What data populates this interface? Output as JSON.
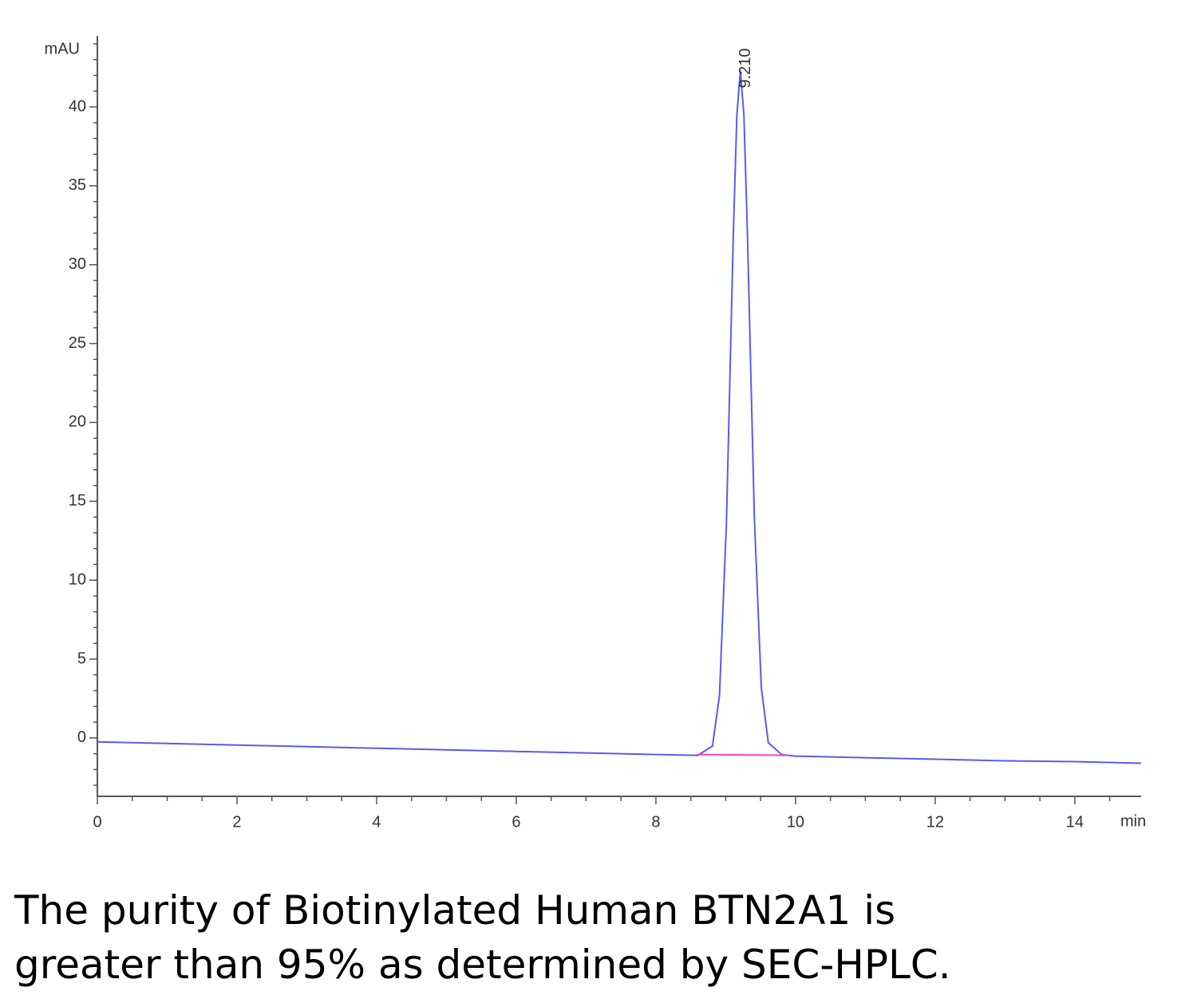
{
  "chart_data": {
    "type": "line",
    "y_label": "mAU",
    "x_label": "min",
    "annotation": "9.210",
    "caption": [
      "The purity of Biotinylated Human BTN2A1 is",
      "greater than 95% as determined by SEC-HPLC."
    ],
    "xlim": [
      0,
      14.95
    ],
    "ylim": [
      -3.7,
      44.3
    ],
    "xticks": [
      0,
      2,
      4,
      6,
      8,
      10,
      12,
      14
    ],
    "xminorticks": [
      0.5,
      1,
      1.5,
      2.5,
      3,
      3.5,
      4.5,
      5,
      5.5,
      6.5,
      7,
      7.5,
      8.5,
      9,
      9.5,
      10.5,
      11,
      11.5,
      12.5,
      13,
      13.5,
      14.5
    ],
    "yticks": [
      0,
      5,
      10,
      15,
      20,
      25,
      30,
      35,
      40
    ],
    "yminorticks": [
      -3,
      -2,
      -1,
      1,
      2,
      3,
      4,
      6,
      7,
      8,
      9,
      11,
      12,
      13,
      14,
      16,
      17,
      18,
      19,
      21,
      22,
      23,
      24,
      26,
      27,
      28,
      29,
      31,
      32,
      33,
      34,
      36,
      37,
      38,
      39,
      41,
      42,
      43,
      44
    ],
    "series": [
      {
        "color": "#5a5aee",
        "x": [
          0,
          1,
          2,
          3,
          4,
          5,
          6,
          7,
          8,
          8.6,
          8.81,
          8.91,
          9.01,
          9.11,
          9.16,
          9.21,
          9.26,
          9.31,
          9.41,
          9.51,
          9.61,
          9.8,
          10,
          11,
          12,
          13,
          14,
          14.95
        ],
        "values": [
          -0.25,
          -0.35,
          -0.45,
          -0.55,
          -0.65,
          -0.75,
          -0.85,
          -0.95,
          -1.05,
          -1.1,
          -0.52,
          2.7,
          13.6,
          32.0,
          39.5,
          42.3,
          39.5,
          32.2,
          14.0,
          3.2,
          -0.3,
          -1.05,
          -1.15,
          -1.25,
          -1.35,
          -1.45,
          -1.5,
          -1.6
        ]
      },
      {
        "color": "#ff40c0",
        "x": [
          8.6,
          9.9
        ],
        "values": [
          -1.05,
          -1.1
        ]
      }
    ]
  }
}
